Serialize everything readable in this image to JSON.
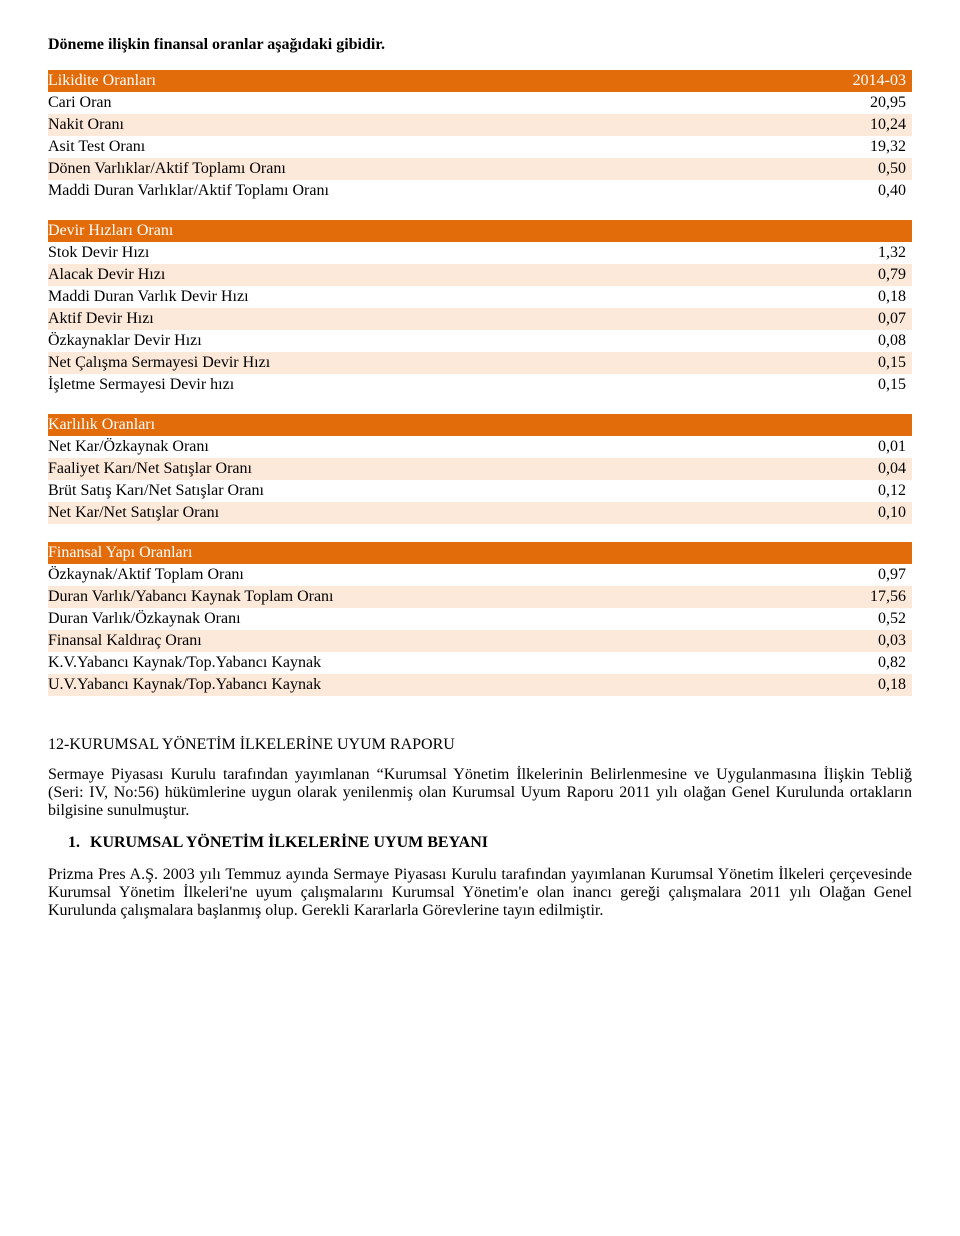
{
  "intro": "Döneme ilişkin finansal oranlar aşağıdaki gibidir.",
  "likidite": {
    "header_label": "Likidite Oranları",
    "header_value": "2014-03",
    "rows": [
      {
        "label": "Cari Oran",
        "value": "20,95"
      },
      {
        "label": "Nakit Oranı",
        "value": "10,24"
      },
      {
        "label": "Asit Test Oranı",
        "value": "19,32"
      },
      {
        "label": "Dönen Varlıklar/Aktif Toplamı Oranı",
        "value": "0,50"
      },
      {
        "label": "Maddi Duran Varlıklar/Aktif Toplamı Oranı",
        "value": "0,40"
      }
    ]
  },
  "devir": {
    "header_label": "Devir Hızları Oranı",
    "rows": [
      {
        "label": "Stok Devir Hızı",
        "value": "1,32"
      },
      {
        "label": "Alacak Devir Hızı",
        "value": "0,79"
      },
      {
        "label": "Maddi Duran Varlık Devir Hızı",
        "value": "0,18"
      },
      {
        "label": "Aktif Devir Hızı",
        "value": "0,07"
      },
      {
        "label": "Özkaynaklar Devir Hızı",
        "value": "0,08"
      },
      {
        "label": "Net Çalışma Sermayesi Devir Hızı",
        "value": "0,15"
      },
      {
        "label": "İşletme Sermayesi Devir hızı",
        "value": "0,15"
      }
    ]
  },
  "karlilik": {
    "header_label": "Karlılık Oranları",
    "rows": [
      {
        "label": "Net Kar/Özkaynak Oranı",
        "value": "0,01"
      },
      {
        "label": "Faaliyet Karı/Net Satışlar Oranı",
        "value": "0,04"
      },
      {
        "label": "Brüt Satış Karı/Net Satışlar Oranı",
        "value": "0,12"
      },
      {
        "label": "Net Kar/Net Satışlar Oranı",
        "value": "0,10"
      }
    ]
  },
  "finansal": {
    "header_label": "Finansal Yapı Oranları",
    "rows": [
      {
        "label": "Özkaynak/Aktif Toplam Oranı",
        "value": "0,97"
      },
      {
        "label": "Duran Varlık/Yabancı Kaynak Toplam Oranı",
        "value": "17,56"
      },
      {
        "label": "Duran Varlık/Özkaynak Oranı",
        "value": "0,52"
      },
      {
        "label": "Finansal Kaldıraç Oranı",
        "value": "0,03"
      },
      {
        "label": "K.V.Yabancı Kaynak/Top.Yabancı Kaynak",
        "value": "0,82"
      },
      {
        "label": "U.V.Yabancı Kaynak/Top.Yabancı Kaynak",
        "value": "0,18"
      }
    ]
  },
  "section12": {
    "heading": "12-KURUMSAL YÖNETİM İLKELERİNE UYUM RAPORU",
    "para1": "Sermaye Piyasası Kurulu tarafından yayımlanan “Kurumsal Yönetim İlkelerinin Belirlenmesine ve Uygulanmasına İlişkin Tebliğ (Seri: IV, No:56) hükümlerine uygun olarak yenilenmiş olan Kurumsal Uyum Raporu 2011 yılı olağan Genel Kurulunda ortakların bilgisine sunulmuştur.",
    "bullet1": "KURUMSAL YÖNETİM İLKELERİNE UYUM BEYANI",
    "para2": "Prizma Pres A.Ş. 2003 yılı Temmuz ayında Sermaye Piyasası Kurulu tarafından yayımlanan Kurumsal Yönetim İlkeleri çerçevesinde Kurumsal Yönetim İlkeleri'ne uyum çalışmalarını Kurumsal Yönetim'e olan inancı gereği çalışmalara 2011 yılı Olağan Genel Kurulunda çalışmalara başlanmış olup. Gerekli Kararlarla Görevlerine tayın edilmiştir."
  }
}
